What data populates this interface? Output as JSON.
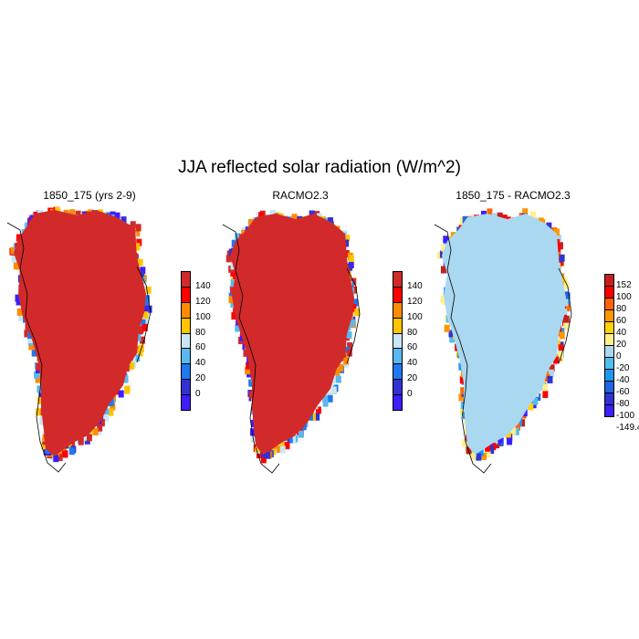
{
  "title": "JJA reflected solar radiation (W/m^2)",
  "colors": {
    "ice": "#d22a2a",
    "diff_ice": "#a9d8f0",
    "coast": "#000000"
  },
  "panels": [
    {
      "title": "1850_175 (yrs 2-9)",
      "colorbar": {
        "labels": [
          "140",
          "120",
          "100",
          "80",
          "60",
          "40",
          "20",
          "0"
        ],
        "colors": [
          "#d22a2a",
          "#ff0000",
          "#ff8c00",
          "#ffc400",
          "#c8e6f5",
          "#5ab8f0",
          "#1e78f0",
          "#3232d2",
          "#3c1eff"
        ]
      }
    },
    {
      "title": "RACMO2.3",
      "colorbar": {
        "labels": [
          "140",
          "120",
          "100",
          "80",
          "60",
          "40",
          "20",
          "0"
        ],
        "colors": [
          "#d22a2a",
          "#ff0000",
          "#ff8c00",
          "#ffc400",
          "#c8e6f5",
          "#5ab8f0",
          "#1e78f0",
          "#3232d2",
          "#3c1eff"
        ]
      }
    },
    {
      "title": "1850_175 - RACMO2.3",
      "colorbar": {
        "labels": [
          "152",
          "100",
          "80",
          "60",
          "40",
          "20",
          "0",
          "-20",
          "-40",
          "-60",
          "-80",
          "-100",
          "-149.4"
        ],
        "colors": [
          "#c81e1e",
          "#ff0000",
          "#ff6400",
          "#ff9600",
          "#ffd200",
          "#fff08c",
          "#a9d8f0",
          "#50beef",
          "#1e96ef",
          "#1e64e6",
          "#3232d2",
          "#3c1eff"
        ]
      }
    }
  ]
}
